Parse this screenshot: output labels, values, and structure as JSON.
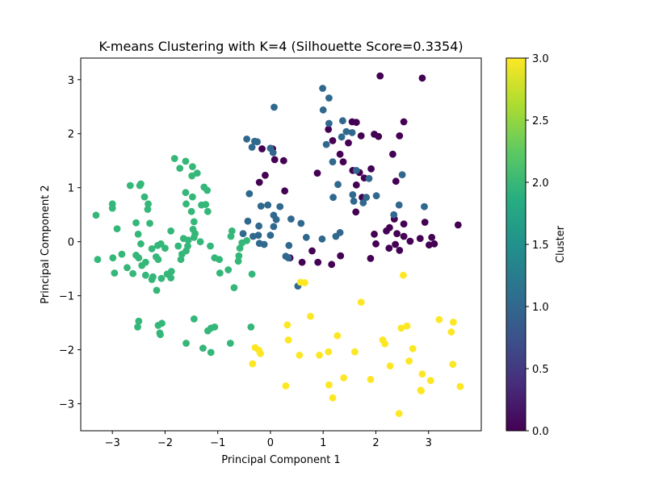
{
  "chart_data": {
    "type": "scatter",
    "title": "K-means Clustering with K=4 (Silhouette Score=0.3354)",
    "xlabel": "Principal Component 1",
    "ylabel": "Principal Component 2",
    "xlim": [
      -3.6,
      4.0
    ],
    "ylim": [
      -3.5,
      3.4
    ],
    "xticks": [
      -3,
      -2,
      -1,
      0,
      1,
      2,
      3
    ],
    "yticks": [
      -3,
      -2,
      -1,
      0,
      1,
      2,
      3
    ],
    "grid": false,
    "colorbar": {
      "label": "Cluster",
      "min": 0.0,
      "max": 3.0,
      "ticks": [
        "0.0",
        "0.5",
        "1.0",
        "1.5",
        "2.0",
        "2.5",
        "3.0"
      ],
      "colormap": "viridis"
    },
    "cluster_colors": {
      "0": "#440154",
      "1": "#31688e",
      "2": "#35b779",
      "3": "#fde725"
    },
    "series": [
      {
        "cluster": 0,
        "points": [
          [
            2.08,
            3.07
          ],
          [
            2.88,
            3.03
          ],
          [
            1.55,
            2.22
          ],
          [
            1.63,
            2.21
          ],
          [
            2.53,
            2.22
          ],
          [
            1.1,
            2.08
          ],
          [
            1.97,
            1.99
          ],
          [
            2.05,
            1.95
          ],
          [
            1.72,
            1.96
          ],
          [
            2.45,
            1.96
          ],
          [
            1.18,
            1.87
          ],
          [
            1.48,
            1.83
          ],
          [
            2.32,
            1.62
          ],
          [
            1.32,
            1.62
          ],
          [
            1.38,
            1.48
          ],
          [
            1.56,
            1.32
          ],
          [
            1.91,
            1.35
          ],
          [
            1.69,
            1.28
          ],
          [
            0.89,
            1.27
          ],
          [
            1.78,
            1.18
          ],
          [
            2.38,
            1.12
          ],
          [
            1.63,
            1.05
          ],
          [
            0.04,
            1.72
          ],
          [
            -0.16,
            1.72
          ],
          [
            0.08,
            1.52
          ],
          [
            0.25,
            1.5
          ],
          [
            -0.1,
            1.23
          ],
          [
            -0.21,
            1.1
          ],
          [
            0.27,
            0.94
          ],
          [
            1.74,
            0.82
          ],
          [
            1.62,
            0.55
          ],
          [
            2.35,
            0.42
          ],
          [
            2.53,
            0.33
          ],
          [
            2.93,
            0.36
          ],
          [
            2.2,
            0.2
          ],
          [
            2.26,
            0.26
          ],
          [
            1.97,
            0.14
          ],
          [
            2.4,
            0.15
          ],
          [
            2.53,
            0.1
          ],
          [
            3.06,
            0.08
          ],
          [
            3.56,
            0.31
          ],
          [
            2.84,
            0.06
          ],
          [
            2.65,
            0.01
          ],
          [
            3.11,
            -0.04
          ],
          [
            3.01,
            -0.06
          ],
          [
            2.0,
            -0.04
          ],
          [
            2.37,
            -0.05
          ],
          [
            2.25,
            -0.12
          ],
          [
            2.45,
            -0.16
          ],
          [
            0.37,
            -0.3
          ],
          [
            0.6,
            -0.38
          ],
          [
            0.9,
            -0.38
          ],
          [
            1.16,
            -0.42
          ],
          [
            0.79,
            -0.17
          ],
          [
            1.33,
            -0.26
          ],
          [
            1.9,
            -0.31
          ]
        ]
      },
      {
        "cluster": 1,
        "points": [
          [
            0.99,
            2.84
          ],
          [
            1.11,
            2.66
          ],
          [
            0.07,
            2.49
          ],
          [
            1.0,
            2.44
          ],
          [
            1.37,
            2.24
          ],
          [
            1.11,
            2.19
          ],
          [
            1.44,
            2.04
          ],
          [
            1.55,
            2.02
          ],
          [
            1.35,
            1.94
          ],
          [
            -0.45,
            1.9
          ],
          [
            -0.3,
            1.86
          ],
          [
            -0.25,
            1.85
          ],
          [
            -0.35,
            1.75
          ],
          [
            0.0,
            1.73
          ],
          [
            0.05,
            1.65
          ],
          [
            1.06,
            1.8
          ],
          [
            1.18,
            1.48
          ],
          [
            1.63,
            1.32
          ],
          [
            1.87,
            1.17
          ],
          [
            2.5,
            1.24
          ],
          [
            1.28,
            1.06
          ],
          [
            1.56,
            0.87
          ],
          [
            1.82,
            0.82
          ],
          [
            2.01,
            0.85
          ],
          [
            1.58,
            0.75
          ],
          [
            1.76,
            0.72
          ],
          [
            1.19,
            0.82
          ],
          [
            2.44,
            0.68
          ],
          [
            2.34,
            0.5
          ],
          [
            2.92,
            0.65
          ],
          [
            -0.4,
            0.89
          ],
          [
            -0.18,
            0.66
          ],
          [
            -0.05,
            0.68
          ],
          [
            0.06,
            0.49
          ],
          [
            0.11,
            0.41
          ],
          [
            0.18,
            0.65
          ],
          [
            0.39,
            0.42
          ],
          [
            -0.43,
            0.38
          ],
          [
            0.58,
            0.34
          ],
          [
            0.06,
            0.28
          ],
          [
            -0.22,
            0.29
          ],
          [
            -0.52,
            0.15
          ],
          [
            -0.33,
            0.1
          ],
          [
            -0.23,
            0.12
          ],
          [
            0.0,
            0.12
          ],
          [
            0.68,
            0.08
          ],
          [
            0.98,
            0.05
          ],
          [
            1.24,
            0.1
          ],
          [
            1.32,
            0.17
          ],
          [
            -0.21,
            -0.03
          ],
          [
            -0.12,
            -0.05
          ],
          [
            0.35,
            -0.07
          ],
          [
            0.29,
            -0.27
          ],
          [
            0.34,
            -0.3
          ],
          [
            0.52,
            -0.82
          ]
        ]
      },
      {
        "cluster": 2,
        "points": [
          [
            -1.82,
            1.54
          ],
          [
            -1.61,
            1.49
          ],
          [
            -1.48,
            1.39
          ],
          [
            -1.72,
            1.36
          ],
          [
            -1.39,
            1.27
          ],
          [
            -1.49,
            1.22
          ],
          [
            -2.66,
            1.04
          ],
          [
            -2.46,
            1.07
          ],
          [
            -2.48,
            1.04
          ],
          [
            -1.26,
            1.01
          ],
          [
            -1.2,
            0.95
          ],
          [
            -1.61,
            0.91
          ],
          [
            -2.39,
            0.83
          ],
          [
            -1.48,
            0.83
          ],
          [
            -2.32,
            0.7
          ],
          [
            -1.6,
            0.7
          ],
          [
            -1.31,
            0.68
          ],
          [
            -1.23,
            0.69
          ],
          [
            -3.0,
            0.7
          ],
          [
            -3.0,
            0.62
          ],
          [
            -2.33,
            0.6
          ],
          [
            -1.5,
            0.56
          ],
          [
            -1.19,
            0.56
          ],
          [
            -3.31,
            0.49
          ],
          [
            -1.45,
            0.37
          ],
          [
            -2.55,
            0.35
          ],
          [
            -2.29,
            0.34
          ],
          [
            -2.51,
            0.14
          ],
          [
            -2.91,
            0.24
          ],
          [
            -1.89,
            0.2
          ],
          [
            -1.47,
            0.23
          ],
          [
            -1.43,
            0.15
          ],
          [
            -0.73,
            0.2
          ],
          [
            -1.45,
            0.08
          ],
          [
            -1.65,
            0.06
          ],
          [
            -1.56,
            0.03
          ],
          [
            -1.33,
            0.0
          ],
          [
            -2.46,
            -0.04
          ],
          [
            -2.08,
            -0.04
          ],
          [
            -2.14,
            -0.07
          ],
          [
            -1.75,
            -0.08
          ],
          [
            -1.57,
            -0.08
          ],
          [
            -1.14,
            -0.08
          ],
          [
            -0.54,
            -0.02
          ],
          [
            -0.45,
            0.02
          ],
          [
            -0.75,
            0.1
          ],
          [
            -0.58,
            -0.12
          ],
          [
            -2.0,
            -0.12
          ],
          [
            -2.25,
            -0.13
          ],
          [
            -1.6,
            -0.17
          ],
          [
            -1.68,
            -0.23
          ],
          [
            -2.55,
            -0.25
          ],
          [
            -2.17,
            -0.28
          ],
          [
            -2.5,
            -0.3
          ],
          [
            -1.06,
            -0.3
          ],
          [
            -0.97,
            -0.33
          ],
          [
            -0.6,
            -0.26
          ],
          [
            -2.13,
            -0.33
          ],
          [
            -1.7,
            -0.33
          ],
          [
            -3.28,
            -0.33
          ],
          [
            -2.99,
            -0.3
          ],
          [
            -2.82,
            -0.23
          ],
          [
            -2.44,
            -0.44
          ],
          [
            -2.37,
            -0.38
          ],
          [
            -0.61,
            -0.36
          ],
          [
            -2.72,
            -0.48
          ],
          [
            -1.88,
            -0.55
          ],
          [
            -0.8,
            -0.52
          ],
          [
            -2.61,
            -0.59
          ],
          [
            -2.37,
            -0.62
          ],
          [
            -2.23,
            -0.65
          ],
          [
            -1.96,
            -0.6
          ],
          [
            -2.07,
            -0.68
          ],
          [
            -1.89,
            -0.67
          ],
          [
            -2.25,
            -0.7
          ],
          [
            -0.96,
            -0.58
          ],
          [
            -0.35,
            -0.6
          ],
          [
            -2.16,
            -0.9
          ],
          [
            -0.69,
            -0.85
          ],
          [
            -2.96,
            -0.58
          ],
          [
            -2.5,
            -1.47
          ],
          [
            -2.52,
            -1.58
          ],
          [
            -2.13,
            -1.55
          ],
          [
            -2.06,
            -1.51
          ],
          [
            -1.45,
            -1.43
          ],
          [
            -1.06,
            -1.58
          ],
          [
            -1.13,
            -1.6
          ],
          [
            -1.19,
            -1.65
          ],
          [
            -2.1,
            -1.69
          ],
          [
            -2.09,
            -1.72
          ],
          [
            -1.6,
            -1.88
          ],
          [
            -0.76,
            -1.88
          ],
          [
            -0.37,
            -1.58
          ],
          [
            -1.28,
            -1.97
          ],
          [
            -1.13,
            -2.05
          ]
        ]
      },
      {
        "cluster": 3,
        "points": [
          [
            2.52,
            -0.62
          ],
          [
            0.57,
            -0.75
          ],
          [
            0.65,
            -0.76
          ],
          [
            1.72,
            -1.12
          ],
          [
            0.76,
            -1.38
          ],
          [
            3.2,
            -1.44
          ],
          [
            3.47,
            -1.49
          ],
          [
            2.59,
            -1.56
          ],
          [
            2.48,
            -1.6
          ],
          [
            0.32,
            -1.54
          ],
          [
            3.43,
            -1.67
          ],
          [
            1.27,
            -1.74
          ],
          [
            0.34,
            -1.82
          ],
          [
            2.13,
            -1.82
          ],
          [
            2.17,
            -1.89
          ],
          [
            2.7,
            -1.98
          ],
          [
            -0.29,
            -1.96
          ],
          [
            -0.22,
            -2.01
          ],
          [
            -0.19,
            -2.07
          ],
          [
            1.1,
            -2.04
          ],
          [
            1.6,
            -2.04
          ],
          [
            0.93,
            -2.1
          ],
          [
            0.55,
            -2.1
          ],
          [
            2.63,
            -2.21
          ],
          [
            3.46,
            -2.27
          ],
          [
            -0.34,
            -2.26
          ],
          [
            2.27,
            -2.3
          ],
          [
            2.88,
            -2.45
          ],
          [
            1.39,
            -2.52
          ],
          [
            1.9,
            -2.55
          ],
          [
            3.04,
            -2.57
          ],
          [
            1.11,
            -2.65
          ],
          [
            3.6,
            -2.68
          ],
          [
            0.29,
            -2.67
          ],
          [
            2.85,
            -2.75
          ],
          [
            2.86,
            -2.76
          ],
          [
            1.18,
            -2.89
          ],
          [
            2.44,
            -3.18
          ]
        ]
      }
    ]
  }
}
